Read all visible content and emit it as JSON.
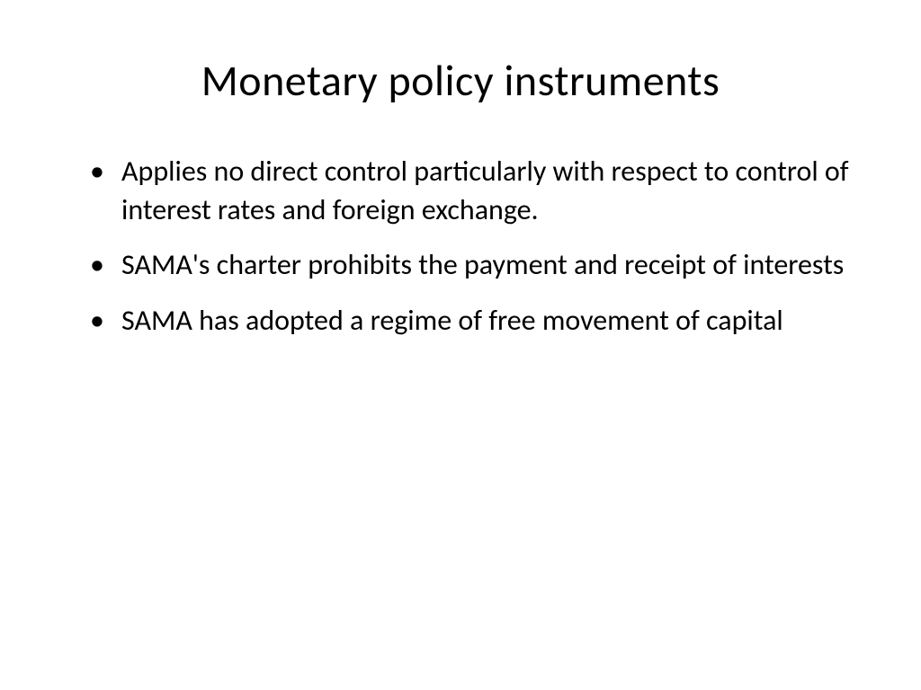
{
  "slide": {
    "title": "Monetary policy instruments",
    "title_fontsize": 48,
    "body_fontsize": 32,
    "text_color": "#000000",
    "background_color": "#ffffff",
    "bullets": [
      "Applies no direct control particularly with respect to control of interest rates and foreign exchange.",
      "SAMA's charter prohibits the payment and receipt of interests",
      "SAMA has adopted a regime of free movement of capital"
    ]
  }
}
